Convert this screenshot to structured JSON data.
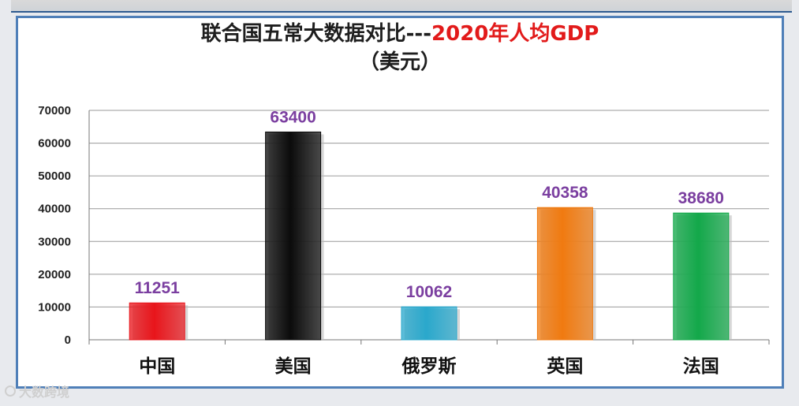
{
  "chart_data": {
    "type": "bar",
    "title_part1": "联合国五常大数据对比---",
    "title_part2": "2020年人均GDP",
    "subtitle": "（美元）",
    "categories": [
      "中国",
      "美国",
      "俄罗斯",
      "英国",
      "法国"
    ],
    "values": [
      11251,
      63400,
      10062,
      40358,
      38680
    ],
    "colors": [
      "#e8151b",
      "#0b0b0b",
      "#2aa8cc",
      "#f07a10",
      "#13a84a"
    ],
    "label_color": "#7b3fa0",
    "yticks": [
      0,
      10000,
      20000,
      30000,
      40000,
      50000,
      60000,
      70000
    ],
    "ylim": [
      0,
      70000
    ],
    "grid": true
  },
  "watermark": {
    "text": "大数跨境",
    "icon": "watermark-logo-icon"
  }
}
